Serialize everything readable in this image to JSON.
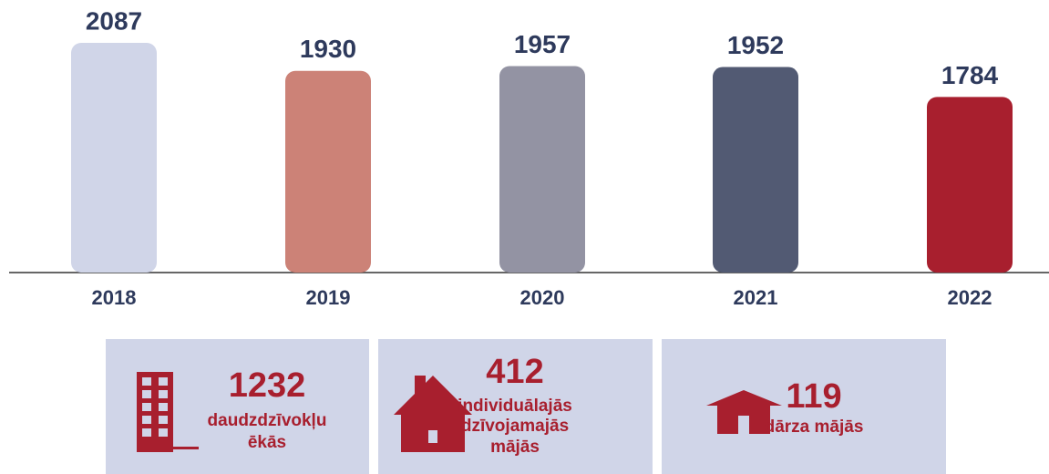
{
  "chart_data": {
    "type": "bar",
    "categories": [
      "2018",
      "2019",
      "2020",
      "2021",
      "2022"
    ],
    "values": [
      2087,
      1930,
      1957,
      1952,
      1784
    ],
    "colors": [
      "#d0d5e8",
      "#cc8277",
      "#9393a3",
      "#525a73",
      "#a81f2e"
    ],
    "ylim": [
      800,
      2100
    ]
  },
  "stats": [
    {
      "value": 1232,
      "label": [
        "daudzdzīvokļu",
        "ēkās"
      ]
    },
    {
      "value": 412,
      "label": [
        "individuālajās",
        "dzīvojamajās",
        "mājās"
      ]
    },
    {
      "value": 119,
      "label": [
        "dārza mājās"
      ]
    }
  ]
}
